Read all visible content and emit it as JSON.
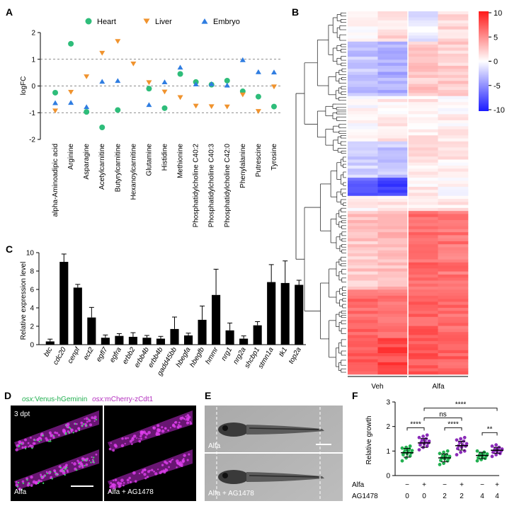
{
  "panels": {
    "A": {
      "label": "A",
      "chart_data": {
        "type": "scatter",
        "ylabel": "logFC",
        "ylim": [
          -2,
          2
        ],
        "yticks": [
          "2",
          "1",
          "0",
          "-1",
          "-2"
        ],
        "reference_lines": [
          1,
          0,
          -1
        ],
        "categories": [
          "alpha-Aminoadipic acid",
          "Arginine",
          "Asparagine",
          "Acetylcarnitine",
          "Butyrylcarnitine",
          "Hexanoylcarnitine",
          "Glutamine",
          "Histidine",
          "Methionine",
          "Phosphatidylcholine C40:2",
          "Phosphatidylcholine C40:3",
          "Phosphatidylcholine C42:0",
          "Phenylalanine",
          "Putrescine",
          "Tyrosine"
        ],
        "legend_position": "top",
        "series": [
          {
            "name": "Heart",
            "color": "#2ebd7a",
            "marker": "circle",
            "values": [
              -0.25,
              1.58,
              -0.97,
              -1.55,
              -0.9,
              null,
              -0.1,
              -0.83,
              0.45,
              0.15,
              0.05,
              0.2,
              -0.2,
              -0.4,
              -0.77
            ]
          },
          {
            "name": "Liver",
            "color": "#f0932e",
            "marker": "triangle-down",
            "values": [
              -0.93,
              -0.23,
              0.35,
              1.23,
              1.67,
              0.83,
              0.13,
              -0.22,
              -0.43,
              -0.75,
              -0.77,
              -0.78,
              -0.33,
              -0.95,
              -0.03
            ]
          },
          {
            "name": "Embryo",
            "color": "#2f7de1",
            "marker": "triangle-up",
            "values": [
              -0.63,
              -0.62,
              -0.78,
              0.17,
              0.2,
              null,
              -0.7,
              0.15,
              0.7,
              0.07,
              0.08,
              0.03,
              0.98,
              0.53,
              0.52
            ]
          }
        ]
      }
    },
    "B": {
      "label": "B",
      "chart_data": {
        "type": "heatmap",
        "columns": [
          "Veh",
          "Alfa"
        ],
        "colorbar_ticks": [
          "10",
          "5",
          "0",
          "-5",
          "-10"
        ],
        "color_range": [
          -10,
          10
        ],
        "color_low": "#1a1aff",
        "color_mid": "#ffffff",
        "color_high": "#ff1a1a",
        "rows": 120
      }
    },
    "C": {
      "label": "C",
      "chart_data": {
        "type": "bar",
        "ylabel": "Relative expression level",
        "ylim": [
          0,
          10
        ],
        "yticks": [
          "10",
          "8",
          "6",
          "4",
          "2",
          "0"
        ],
        "categories": [
          "btc",
          "cdc20",
          "cenpf",
          "ect2",
          "egfl7",
          "egfra",
          "erbb2",
          "erbb4b",
          "erbb4b",
          "gadd45bb",
          "hbegfa",
          "hbegfb",
          "hmmr",
          "nrg1",
          "nrg2a",
          "shcbp1",
          "stmn1a",
          "tk1",
          "top2a"
        ],
        "values": [
          0.35,
          9.0,
          6.2,
          2.95,
          0.75,
          0.95,
          0.85,
          0.75,
          0.65,
          1.7,
          1.0,
          2.7,
          5.4,
          1.55,
          0.65,
          2.1,
          6.8,
          6.7,
          6.5
        ],
        "errors": [
          0.25,
          0.85,
          0.35,
          1.1,
          0.3,
          0.25,
          0.45,
          0.25,
          0.25,
          1.3,
          0.25,
          1.5,
          2.8,
          0.8,
          0.3,
          0.4,
          1.9,
          2.4,
          0.5
        ],
        "bar_color": "#000000"
      }
    },
    "D": {
      "label": "D",
      "header_green": "osx:",
      "header_green2": "Venus-hGeminin",
      "header_magenta": "osx:",
      "header_magenta2": "mCherry-zCdt1",
      "timepoint": "3 dpt",
      "left_label": "Alfa",
      "right_label": "Alfa + AG1478"
    },
    "E": {
      "label": "E",
      "top_label": "Alfa",
      "bottom_label": "Alfa + AG1478"
    },
    "F": {
      "label": "F",
      "chart_data": {
        "type": "scatter",
        "ylabel": "Relative growth",
        "ylim": [
          0,
          3
        ],
        "yticks": [
          "3",
          "2",
          "1",
          "0"
        ],
        "row_labels": [
          "Alfa",
          "AG1478"
        ],
        "alfa": [
          "−",
          "+",
          "−",
          "+",
          "−",
          "+"
        ],
        "ag1478": [
          "0",
          "0",
          "2",
          "2",
          "4",
          "4"
        ],
        "groups": [
          {
            "color": "#22b050",
            "mean": 0.93,
            "sd": 0.18,
            "points": [
              0.6,
              0.72,
              0.8,
              0.85,
              0.9,
              0.92,
              0.95,
              1.0,
              1.02,
              1.05,
              1.08,
              1.12,
              1.15,
              1.2
            ]
          },
          {
            "color": "#8a2bb8",
            "mean": 1.33,
            "sd": 0.18,
            "points": [
              1.05,
              1.15,
              1.2,
              1.25,
              1.3,
              1.32,
              1.35,
              1.38,
              1.4,
              1.45,
              1.5,
              1.55,
              1.6,
              1.65
            ]
          },
          {
            "color": "#22b050",
            "mean": 0.72,
            "sd": 0.16,
            "points": [
              0.45,
              0.5,
              0.6,
              0.62,
              0.68,
              0.7,
              0.72,
              0.75,
              0.78,
              0.8,
              0.85,
              0.9,
              0.95,
              1.0
            ]
          },
          {
            "color": "#8a2bb8",
            "mean": 1.22,
            "sd": 0.18,
            "points": [
              0.85,
              0.95,
              1.0,
              1.1,
              1.15,
              1.2,
              1.22,
              1.25,
              1.3,
              1.35,
              1.4,
              1.45,
              1.5,
              1.55
            ]
          },
          {
            "color": "#22b050",
            "mean": 0.82,
            "sd": 0.13,
            "points": [
              0.6,
              0.65,
              0.7,
              0.72,
              0.75,
              0.8,
              0.82,
              0.85,
              0.88,
              0.9,
              0.95,
              1.0
            ]
          },
          {
            "color": "#8a2bb8",
            "mean": 1.03,
            "sd": 0.12,
            "points": [
              0.78,
              0.85,
              0.9,
              0.95,
              0.98,
              1.0,
              1.02,
              1.05,
              1.08,
              1.1,
              1.15,
              1.2,
              1.25
            ]
          }
        ],
        "comparisons": [
          {
            "from": 0,
            "to": 1,
            "label": "****"
          },
          {
            "from": 1,
            "to": 3,
            "label": "ns"
          },
          {
            "from": 2,
            "to": 3,
            "label": "****"
          },
          {
            "from": 1,
            "to": 5,
            "label": "****"
          },
          {
            "from": 4,
            "to": 5,
            "label": "**"
          }
        ]
      }
    }
  }
}
